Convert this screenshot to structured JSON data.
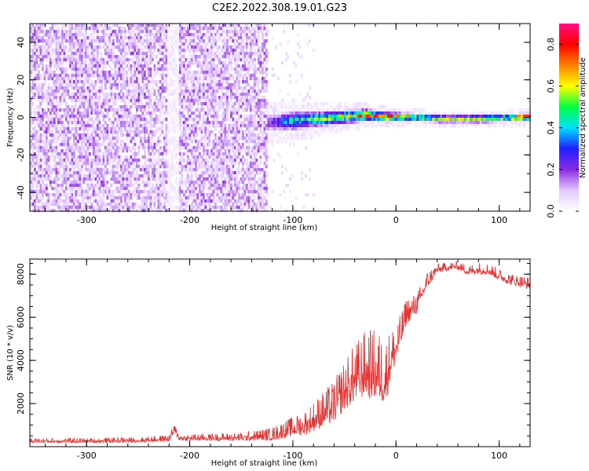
{
  "title": "C2E2.2022.308.19.01.G23",
  "chart_data": [
    {
      "type": "heatmap",
      "xlabel": "Height of straight line (km)",
      "ylabel": "Frequency (Hz)",
      "xlim": [
        -355,
        130
      ],
      "ylim": [
        -50,
        50
      ],
      "x_ticks": [
        -300,
        -200,
        -100,
        0,
        100
      ],
      "y_ticks": [
        -40,
        -20,
        0,
        20,
        40
      ],
      "colorbar": {
        "label": "Normalized spectral amplitude",
        "range": [
          0,
          0.9
        ],
        "ticks": [
          0.0,
          0.2,
          0.4,
          0.6,
          0.8
        ],
        "colors": [
          "#ffffff",
          "#e2c8ff",
          "#8a2be2",
          "#2020ff",
          "#00e0ff",
          "#00ff40",
          "#ffff00",
          "#ff8000",
          "#ff0000",
          "#ff1080"
        ]
      },
      "noise_region": {
        "x": [
          -355,
          -125
        ],
        "y": [
          -50,
          50
        ],
        "amplitude": 0.12
      },
      "sparse_region": {
        "x": [
          -125,
          -80
        ],
        "y": [
          -50,
          50
        ],
        "amplitude": 0.04
      },
      "signal_band": [
        {
          "x": -125,
          "center": -2,
          "halfwidth": 5,
          "amplitude": 0.2
        },
        {
          "x": -100,
          "center": -1,
          "halfwidth": 5,
          "amplitude": 0.4
        },
        {
          "x": -75,
          "center": 0,
          "halfwidth": 4,
          "amplitude": 0.48
        },
        {
          "x": -50,
          "center": 1,
          "halfwidth": 3.5,
          "amplitude": 0.55
        },
        {
          "x": -30,
          "center": 2,
          "halfwidth": 3,
          "amplitude": 0.7
        },
        {
          "x": -10,
          "center": 1,
          "halfwidth": 2.5,
          "amplitude": 0.72
        },
        {
          "x": 10,
          "center": 1,
          "halfwidth": 2,
          "amplitude": 0.62
        },
        {
          "x": 40,
          "center": 0,
          "halfwidth": 2,
          "amplitude": 0.5
        },
        {
          "x": 80,
          "center": 0,
          "halfwidth": 2,
          "amplitude": 0.55
        },
        {
          "x": 110,
          "center": 0.5,
          "halfwidth": 2,
          "amplitude": 0.58
        },
        {
          "x": 130,
          "center": 1,
          "halfwidth": 2,
          "amplitude": 0.9
        }
      ]
    },
    {
      "type": "line",
      "xlabel": "Height of straight line (km)",
      "ylabel": "SNR (10 * v/v)",
      "xlim": [
        -355,
        130
      ],
      "ylim": [
        0,
        8700
      ],
      "x_ticks": [
        -300,
        -200,
        -100,
        0,
        100
      ],
      "y_ticks": [
        2000,
        4000,
        6000,
        8000
      ],
      "line_color": "#e83030",
      "series": [
        {
          "x": [
            -355,
            -300,
            -250,
            -220,
            -215,
            -210,
            -200,
            -150,
            -120,
            -100,
            -90,
            -80,
            -70,
            -60,
            -50,
            -40,
            -30,
            -20,
            -10,
            -5,
            0,
            5,
            10,
            20,
            30,
            40,
            50,
            60,
            70,
            80,
            90,
            100,
            110,
            120,
            130
          ],
          "y": [
            250,
            250,
            280,
            350,
            750,
            400,
            380,
            400,
            500,
            800,
            900,
            1200,
            1500,
            1800,
            2500,
            3000,
            3400,
            3300,
            3000,
            4000,
            4500,
            5200,
            6100,
            6500,
            7600,
            8200,
            8300,
            8350,
            8100,
            8200,
            8150,
            7900,
            7700,
            7600,
            7500
          ],
          "spread": [
            150,
            150,
            160,
            200,
            300,
            250,
            200,
            250,
            400,
            600,
            700,
            900,
            1100,
            1300,
            1500,
            1800,
            2000,
            2200,
            2000,
            1500,
            1200,
            1000,
            800,
            600,
            500,
            300,
            250,
            250,
            300,
            350,
            350,
            350,
            350,
            350,
            350
          ]
        }
      ]
    }
  ]
}
